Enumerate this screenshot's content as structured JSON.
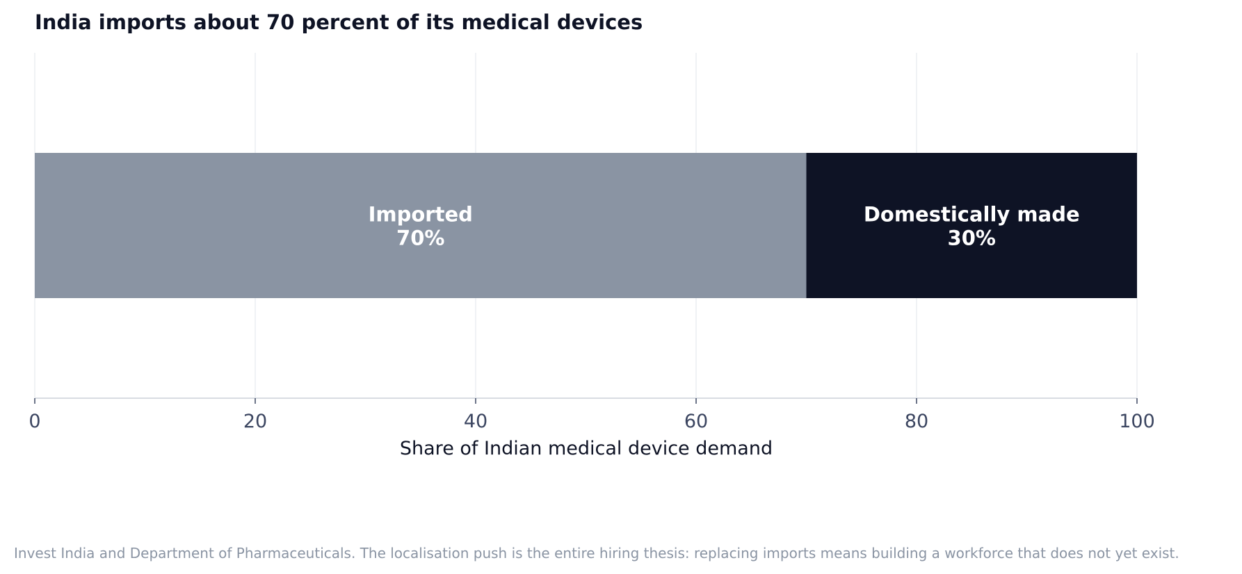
{
  "chart_data": {
    "type": "bar",
    "orientation": "horizontal",
    "stacked": true,
    "title": "India imports about 70 percent of its medical devices",
    "xlabel": "Share of Indian medical device demand",
    "ylabel": "",
    "xlim": [
      0,
      100
    ],
    "xticks": [
      "0",
      "20",
      "40",
      "60",
      "80",
      "100"
    ],
    "grid": "vertical",
    "segments": [
      {
        "name": "Imported",
        "value": 70,
        "value_label": "70%",
        "color": "#8a94a3"
      },
      {
        "name": "Domestically made",
        "value": 30,
        "value_label": "30%",
        "color": "#0e1325"
      }
    ]
  },
  "footer": {
    "source": "Invest India and Department of Pharmaceuticals. The localisation push is the entire hiring thesis: replacing imports means building a workforce that does not yet exist."
  },
  "colors": {
    "title": "#0e1325",
    "tick_text": "#3b4560",
    "axis_label": "#0e1325",
    "grid": "#eceef2",
    "axis_line": "#ccd1d9",
    "bar_text": "#ffffff",
    "footer_text": "#8a94a3"
  }
}
